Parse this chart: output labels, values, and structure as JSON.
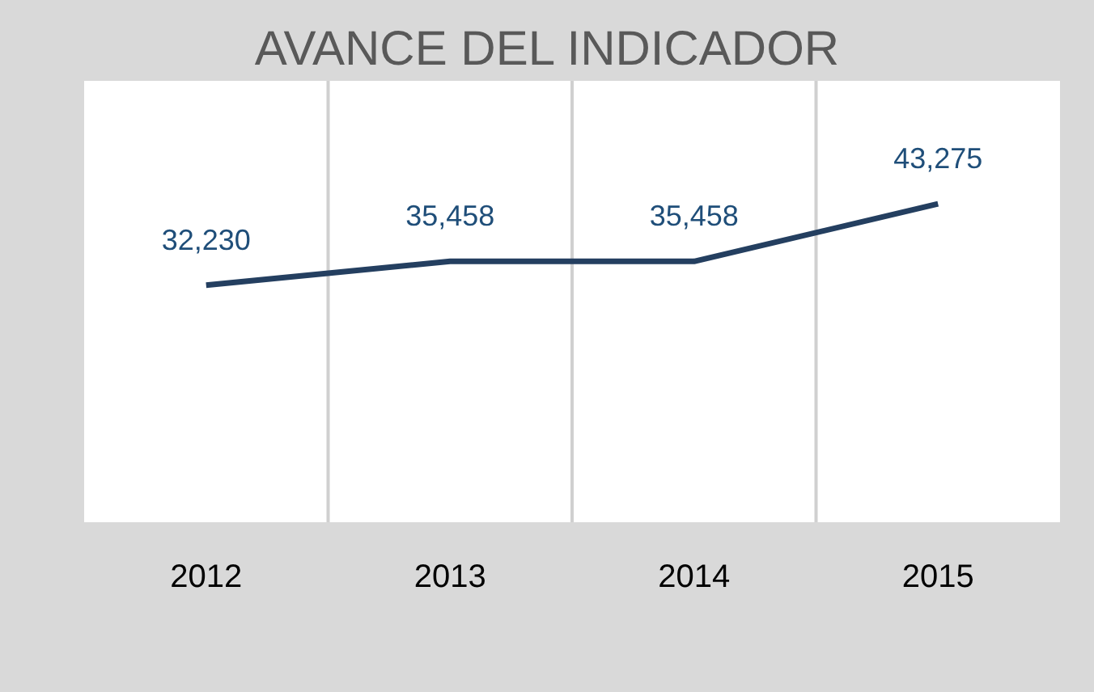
{
  "chart_data": {
    "type": "line",
    "title": "AVANCE DEL INDICADOR",
    "categories": [
      "2012",
      "2013",
      "2014",
      "2015"
    ],
    "series": [
      {
        "color": "#243f60",
        "values": [
          32230,
          35458,
          35458,
          43275
        ],
        "value_labels": [
          "32,230",
          "35,458",
          "35,458",
          "43,275"
        ]
      }
    ],
    "tick_labels": "x",
    "grid": "x",
    "marker": "none",
    "line_style": "solid"
  }
}
